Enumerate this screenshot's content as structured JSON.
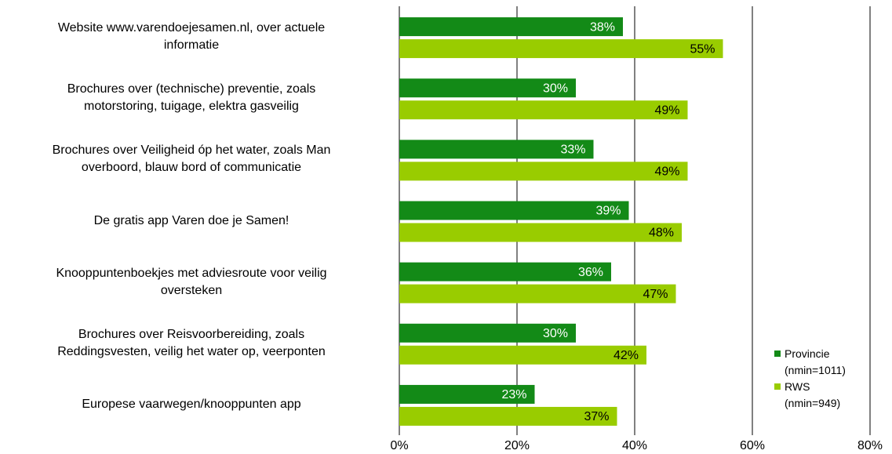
{
  "chart_data": {
    "type": "bar",
    "orientation": "horizontal",
    "categories": [
      "Website www.varendoejesamen.nl, over actuele\ninformatie",
      "Brochures over (technische) preventie, zoals\nmotorstoring, tuigage, elektra gasveilig",
      "Brochures over  Veiligheid óp het water, zoals Man\noverboord, blauw bord of communicatie",
      "De gratis app Varen doe je Samen!",
      "Knooppuntenboekjes met adviesroute voor veilig\noversteken",
      "Brochures over  Reisvoorbereiding, zoals\nReddingsvesten, veilig het water op, veerponten",
      "Europese vaarwegen/knooppunten app"
    ],
    "series": [
      {
        "name": "Provincie\n(nmin=1011)",
        "color": "#138a17",
        "values": [
          38,
          30,
          33,
          39,
          36,
          30,
          23
        ],
        "value_labels": [
          "38%",
          "30%",
          "33%",
          "39%",
          "36%",
          "30%",
          "23%"
        ]
      },
      {
        "name": "RWS\n(nmin=949)",
        "color": "#99cc00",
        "values": [
          55,
          49,
          49,
          48,
          47,
          42,
          37
        ],
        "value_labels": [
          "55%",
          "49%",
          "49%",
          "48%",
          "47%",
          "42%",
          "37%"
        ]
      }
    ],
    "xlim": [
      0,
      80
    ],
    "xticks": [
      {
        "value": 0,
        "label": "0%"
      },
      {
        "value": 20,
        "label": "20%"
      },
      {
        "value": 40,
        "label": "40%"
      },
      {
        "value": 60,
        "label": "60%"
      },
      {
        "value": 80,
        "label": "80%"
      }
    ],
    "grid": true,
    "legend": "lower right"
  }
}
